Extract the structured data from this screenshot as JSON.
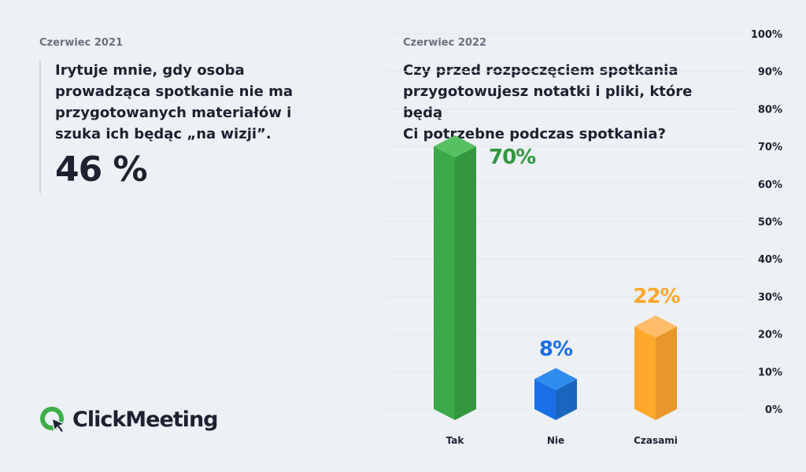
{
  "left": {
    "date": "Czerwiec 2021",
    "question": "Irytuje mnie, gdy osoba prowadząca spotkanie nie ma przygotowanych materiałów i szuka ich będąc „na wizji”.",
    "stat": "46 %"
  },
  "right": {
    "date": "Czerwiec 2022",
    "question": "Czy przed rozpoczęciem spotkania\nprzygotowujesz notatki i pliki, które będą\nCi potrzebne podczas spotkania?"
  },
  "logo": {
    "text": "ClickMeeting",
    "colors": {
      "green": "#3dae49",
      "dark": "#1e2130"
    }
  },
  "chart_data": {
    "type": "bar",
    "title": "Czy przed rozpoczęciem spotkania przygotowujesz notatki i pliki, które będą Ci potrzebne podczas spotkania?",
    "categories": [
      "Tak",
      "Nie",
      "Czasami"
    ],
    "values": [
      70,
      8,
      22
    ],
    "data_labels": [
      "70%",
      "8%",
      "22%"
    ],
    "colors": [
      {
        "front": "#3aaa48",
        "side": "#32973d",
        "top": "#55c160",
        "label": "#32973d"
      },
      {
        "front": "#1a6fe6",
        "side": "#1a65bd",
        "top": "#2f8bee",
        "label": "#1a6fe6"
      },
      {
        "front": "#ffa82c",
        "side": "#e9972a",
        "top": "#ffbd6c",
        "label": "#ffa82c"
      }
    ],
    "ylim": [
      0,
      100
    ],
    "yticks": [
      "0%",
      "10%",
      "20%",
      "30%",
      "40%",
      "50%",
      "60%",
      "70%",
      "80%",
      "90%",
      "100%"
    ],
    "ytick_values": [
      0,
      10,
      20,
      30,
      40,
      50,
      60,
      70,
      80,
      90,
      100
    ],
    "grid": true,
    "xlabel": "",
    "ylabel": ""
  }
}
